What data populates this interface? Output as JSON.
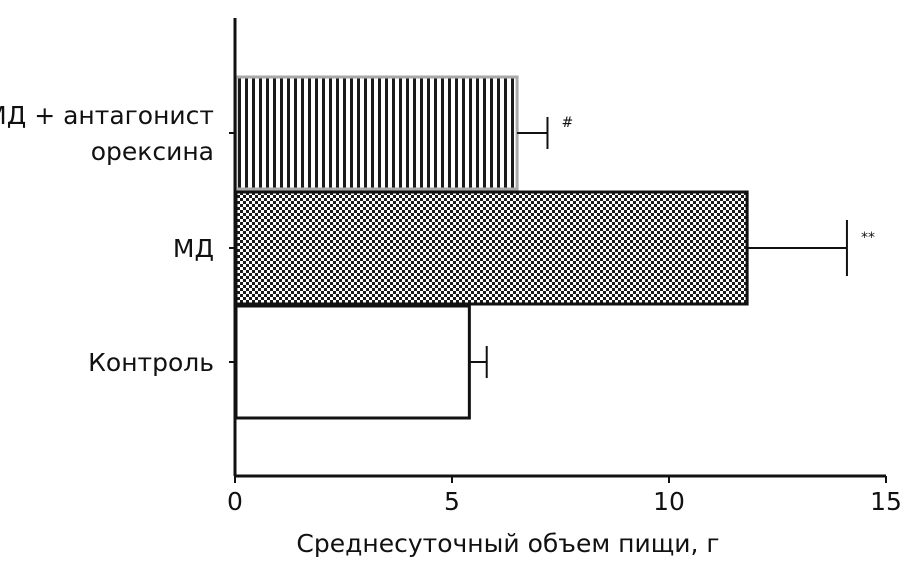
{
  "chart_data": {
    "type": "bar",
    "orientation": "horizontal",
    "title": "",
    "xlabel": "Среднесуточный объем пищи, г",
    "ylabel": "",
    "xlim": [
      0,
      15
    ],
    "xticks": [
      0,
      5,
      10,
      15
    ],
    "grid": false,
    "bars": [
      {
        "label": "Контроль",
        "value": 5.4,
        "error": 0.4,
        "significance": "",
        "pattern": "solid-white"
      },
      {
        "label": "МД",
        "value": 11.8,
        "error": 2.3,
        "significance": "**",
        "pattern": "checker"
      },
      {
        "label_lines": [
          "МД + антагонист",
          "орексина"
        ],
        "value": 6.5,
        "error": 0.7,
        "significance": "#",
        "pattern": "vertical-stripes"
      }
    ]
  },
  "colors": {
    "outline": "#111111",
    "pattern_dark": "#1a1a1a",
    "stripe_bar_outline": "#aaaaaa",
    "background": "#ffffff"
  }
}
